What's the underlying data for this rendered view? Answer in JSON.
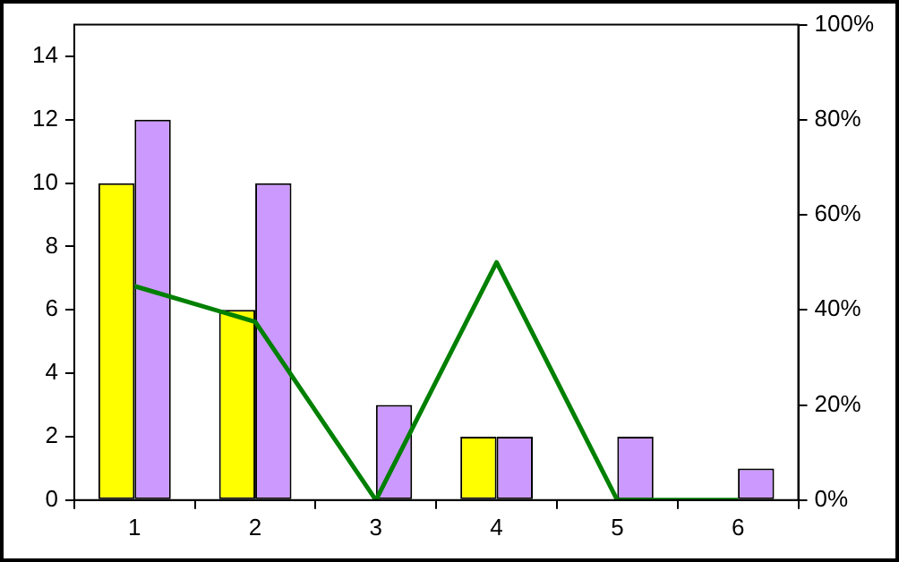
{
  "chart_data": {
    "type": "bar",
    "categories": [
      "1",
      "2",
      "3",
      "4",
      "5",
      "6"
    ],
    "series": [
      {
        "color": "#ffff00",
        "values": [
          10,
          6,
          0,
          2,
          0,
          0
        ]
      },
      {
        "color": "#cc99ff",
        "values": [
          12,
          10,
          3,
          2,
          2,
          1
        ]
      },
      {
        "type": "line",
        "axis": "y2",
        "color": "#008000",
        "marker": "none",
        "values": [
          45,
          37.5,
          0,
          50,
          0,
          0
        ]
      }
    ],
    "ylim": [
      0,
      15
    ],
    "yticks": [
      0,
      2,
      4,
      6,
      8,
      10,
      12,
      14
    ],
    "y2lim": [
      0,
      100
    ],
    "y2ticks": [
      {
        "value": 0,
        "label": "0%"
      },
      {
        "value": 20,
        "label": "20%"
      },
      {
        "value": 40,
        "label": "40%"
      },
      {
        "value": 60,
        "label": "60%"
      },
      {
        "value": 80,
        "label": "80%"
      },
      {
        "value": 100,
        "label": "100%"
      }
    ],
    "grid": false,
    "legend": false
  }
}
